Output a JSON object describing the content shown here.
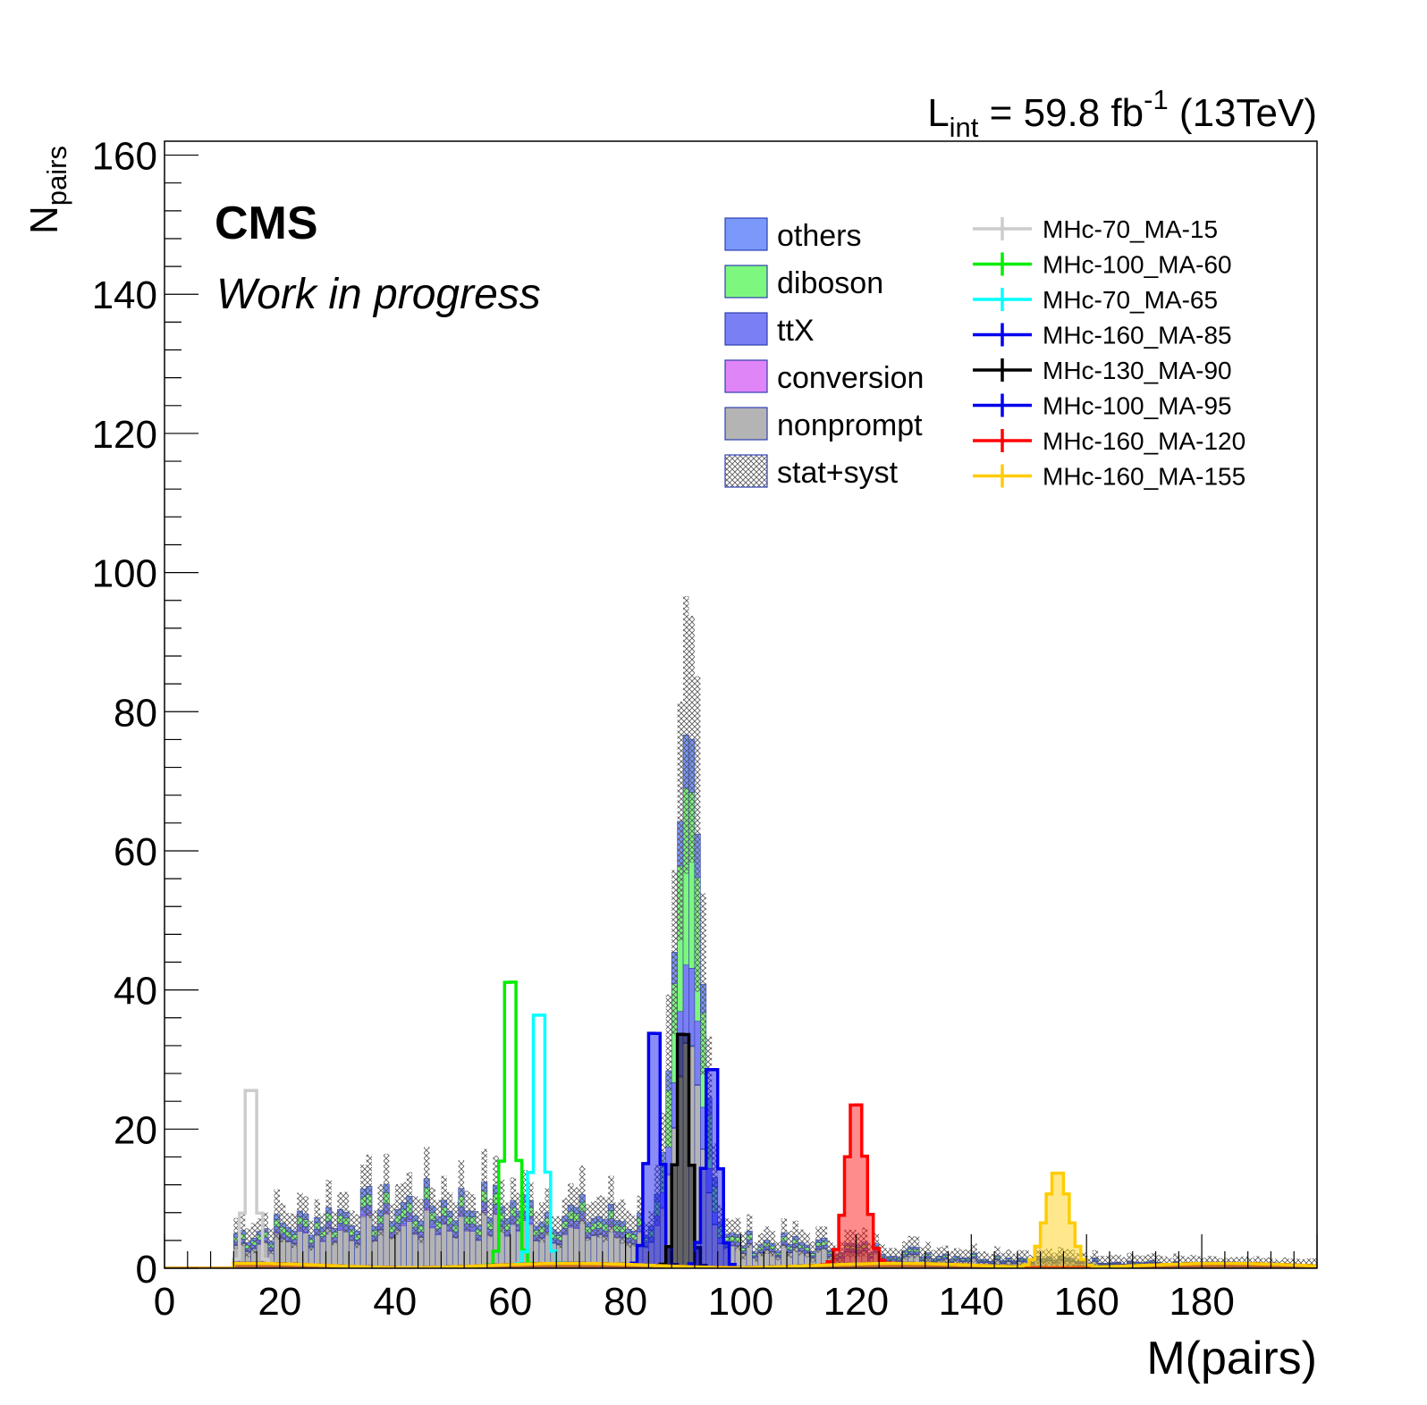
{
  "chart_data": {
    "type": "bar",
    "stacked": true,
    "header": {
      "lumi_base": "L",
      "lumi_sub": "int",
      "lumi_value": " = 59.8 fb",
      "lumi_sup": "-1",
      "lumi_energy": " (13TeV)"
    },
    "labels": {
      "cms": "CMS",
      "status": "Work in progress"
    },
    "xlabel": "M(pairs)",
    "ylabel_base": "N",
    "ylabel_sub": "pairs",
    "xlim": [
      0,
      200
    ],
    "ylim": [
      0,
      162
    ],
    "xticks": [
      0,
      20,
      40,
      60,
      80,
      100,
      120,
      140,
      160,
      180
    ],
    "yticks": [
      0,
      20,
      40,
      60,
      80,
      100,
      120,
      140,
      160
    ],
    "bin_width": 1,
    "background_series": [
      {
        "name": "others",
        "color": "#7a99fb"
      },
      {
        "name": "diboson",
        "color": "#7ef77e"
      },
      {
        "name": "ttX",
        "color": "#7a80f4"
      },
      {
        "name": "conversion",
        "color": "#e085f7"
      },
      {
        "name": "nonprompt",
        "color": "#b4b4b4"
      }
    ],
    "uncertainty": {
      "name": "stat+syst",
      "color": "#555555"
    },
    "signal_series": [
      {
        "name": "MHc-70_MA-15",
        "color": "#cccccc",
        "mass": 15,
        "width": 0.9,
        "peak": 29,
        "filled": false
      },
      {
        "name": "MHc-100_MA-60",
        "color": "#00ee00",
        "mass": 60,
        "width": 1.0,
        "peak": 46,
        "filled": false
      },
      {
        "name": "MHc-70_MA-65",
        "color": "#00ffff",
        "mass": 65,
        "width": 1.0,
        "peak": 40.5,
        "filled": false
      },
      {
        "name": "MHc-160_MA-85",
        "color": "#0000ee",
        "mass": 85,
        "width": 1.1,
        "peak": 37,
        "filled": true
      },
      {
        "name": "MHc-130_MA-90",
        "color": "#000000",
        "mass": 90,
        "width": 1.1,
        "peak": 37,
        "filled": true
      },
      {
        "name": "MHc-100_MA-95",
        "color": "#0000ee",
        "mass": 95,
        "width": 1.2,
        "peak": 31,
        "filled": true
      },
      {
        "name": "MHc-160_MA-120",
        "color": "#ff0000",
        "mass": 120,
        "width": 1.6,
        "peak": 24,
        "filled": true
      },
      {
        "name": "MHc-160_MA-155",
        "color": "#ffcc00",
        "mass": 155,
        "width": 2.0,
        "peak": 14,
        "filled": true
      }
    ],
    "background_shape": {
      "start": 12,
      "continuum": [
        [
          12,
          5
        ],
        [
          20,
          6
        ],
        [
          30,
          8
        ],
        [
          40,
          9
        ],
        [
          50,
          9.5
        ],
        [
          60,
          9
        ],
        [
          70,
          8
        ],
        [
          80,
          7
        ],
        [
          100,
          4
        ],
        [
          120,
          3
        ],
        [
          140,
          1.8
        ],
        [
          160,
          1.2
        ],
        [
          180,
          0.6
        ],
        [
          200,
          0.4
        ]
      ],
      "z_peak": {
        "mass": 91,
        "width": 2.2,
        "height": 72
      },
      "fractions": {
        "others": 0.1,
        "diboson": 0.13,
        "ttX": 0.1,
        "conversion": 0.02,
        "nonprompt": 0.65
      },
      "z_fractions": {
        "others": 0.1,
        "diboson": 0.35,
        "ttX": 0.15,
        "conversion": 0.0,
        "nonprompt": 0.4
      },
      "uncertainty_fraction": 0.28
    }
  }
}
